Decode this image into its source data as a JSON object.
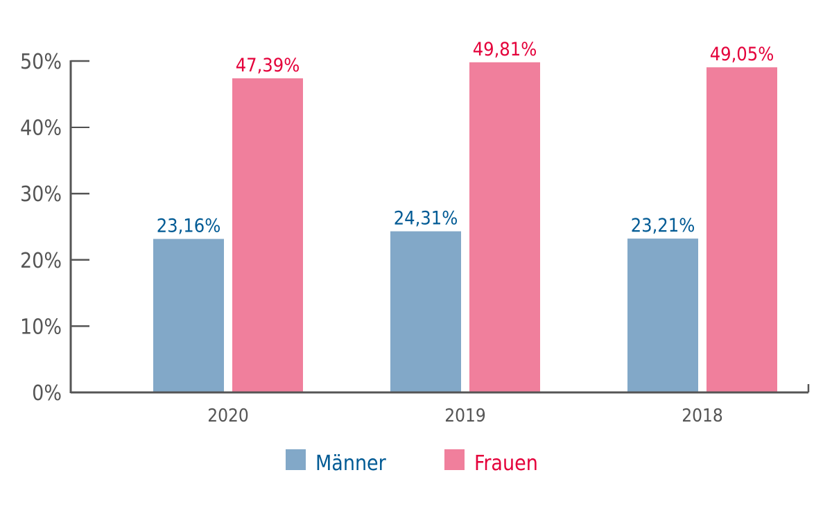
{
  "chart_data": {
    "type": "bar",
    "categories": [
      "2020",
      "2019",
      "2018"
    ],
    "series": [
      {
        "name": "Männer",
        "values": [
          23.16,
          24.31,
          23.21
        ],
        "labels": [
          "23,16%",
          "24,31%",
          "23,21%"
        ],
        "color": "#82A8C8",
        "label_color": "#005A94"
      },
      {
        "name": "Frauen",
        "values": [
          47.39,
          49.81,
          49.05
        ],
        "labels": [
          "47,39%",
          "49,81%",
          "49,05%"
        ],
        "color": "#F07F9C",
        "label_color": "#E4003A"
      }
    ],
    "yticks": [
      "0%",
      "10%",
      "20%",
      "30%",
      "40%",
      "50%"
    ],
    "ylim": [
      0,
      50
    ],
    "grid": false,
    "legend": "bottom-center",
    "axis_color": "#555555"
  }
}
